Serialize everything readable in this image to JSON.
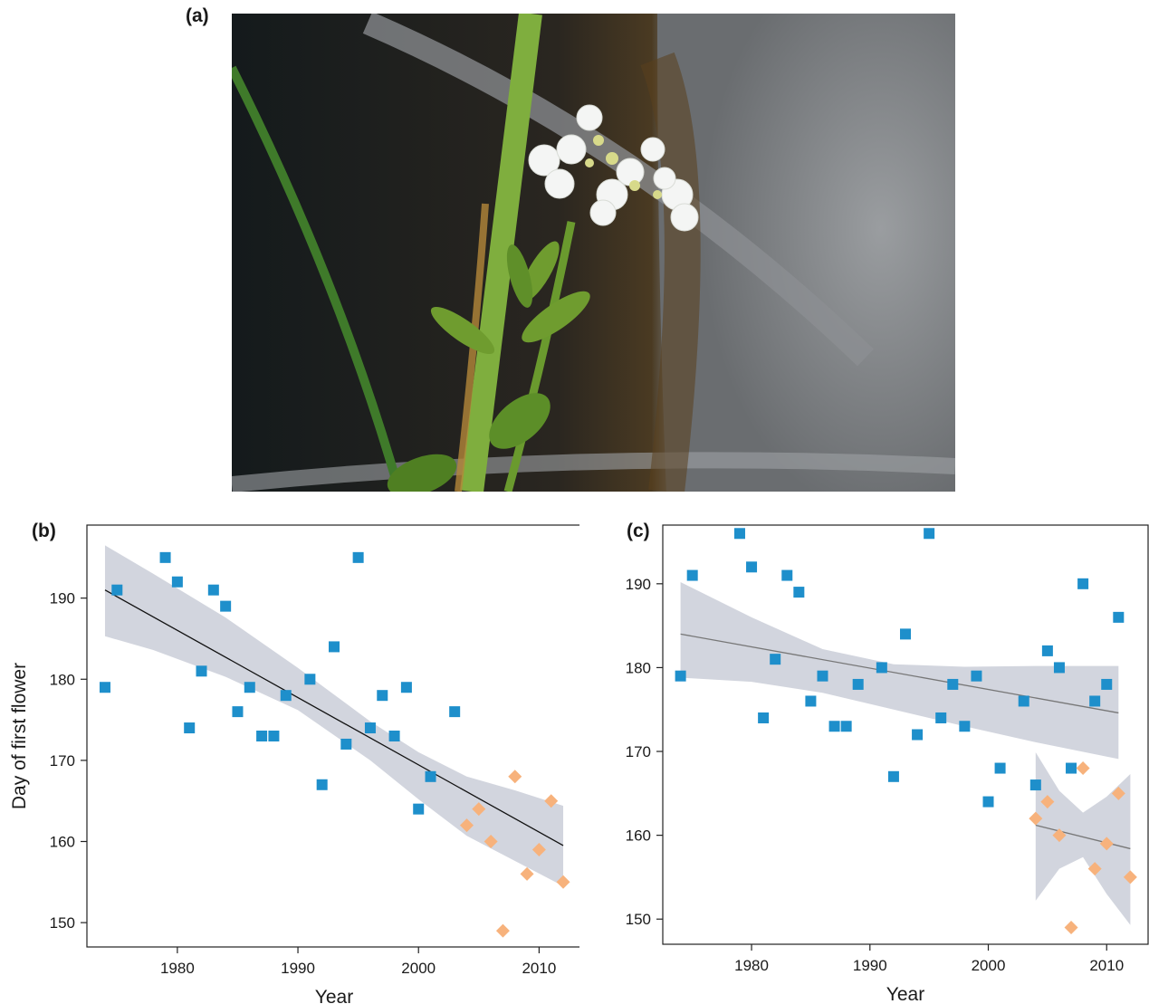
{
  "labels": {
    "a": "(a)",
    "b": "(b)",
    "c": "(c)"
  },
  "photo": {
    "description_icon": "flower-photo"
  },
  "colors": {
    "blue": "#1e8fcb",
    "orange": "#f7b27c",
    "band": "#d2d5de",
    "line_b": "#111111",
    "line_c": "#777777"
  },
  "chart_data": [
    {
      "panel": "(b)",
      "type": "scatter",
      "xlabel": "Year",
      "ylabel": "Day of  first flower",
      "xlim": [
        1972.5,
        2013.5
      ],
      "ylim": [
        147,
        199
      ],
      "xticks": [
        1980,
        1990,
        2000,
        2010
      ],
      "yticks": [
        150,
        160,
        170,
        180,
        190
      ],
      "series": [
        {
          "marker": "square",
          "color": "#1e8fcb",
          "points": [
            [
              1974,
              179
            ],
            [
              1975,
              191
            ],
            [
              1979,
              195
            ],
            [
              1980,
              192
            ],
            [
              1981,
              174
            ],
            [
              1982,
              181
            ],
            [
              1983,
              191
            ],
            [
              1984,
              189
            ],
            [
              1985,
              176
            ],
            [
              1986,
              179
            ],
            [
              1987,
              173
            ],
            [
              1988,
              173
            ],
            [
              1989,
              178
            ],
            [
              1991,
              180
            ],
            [
              1992,
              167
            ],
            [
              1993,
              184
            ],
            [
              1994,
              172
            ],
            [
              1995,
              195
            ],
            [
              1996,
              174
            ],
            [
              1997,
              178
            ],
            [
              1998,
              173
            ],
            [
              1999,
              179
            ],
            [
              2000,
              164
            ],
            [
              2001,
              168
            ],
            [
              2003,
              176
            ]
          ]
        },
        {
          "marker": "diamond",
          "color": "#f7b27c",
          "points": [
            [
              2004,
              162
            ],
            [
              2005,
              164
            ],
            [
              2006,
              160
            ],
            [
              2007,
              149
            ],
            [
              2008,
              168
            ],
            [
              2009,
              156
            ],
            [
              2010,
              159
            ],
            [
              2011,
              165
            ],
            [
              2012,
              155
            ]
          ]
        }
      ],
      "fits": [
        {
          "color": "#111111",
          "line": [
            [
              1974,
              191
            ],
            [
              2012,
              159.5
            ]
          ],
          "band_upper": [
            [
              1974,
              196.5
            ],
            [
              1978,
              193
            ],
            [
              1984,
              187.6
            ],
            [
              1990,
              181.4
            ],
            [
              1996,
              174.8
            ],
            [
              2000,
              171
            ],
            [
              2004,
              168
            ],
            [
              2008,
              166.3
            ],
            [
              2012,
              164.4
            ]
          ],
          "band_lower": [
            [
              1974,
              185.3
            ],
            [
              1978,
              183.6
            ],
            [
              1984,
              180.3
            ],
            [
              1990,
              176.2
            ],
            [
              1996,
              170
            ],
            [
              2000,
              165.2
            ],
            [
              2004,
              160.7
            ],
            [
              2008,
              157.6
            ],
            [
              2012,
              154.5
            ]
          ]
        }
      ]
    },
    {
      "panel": "(c)",
      "type": "scatter",
      "xlabel": "Year",
      "ylabel": "",
      "xlim": [
        1972.5,
        2013.5
      ],
      "ylim": [
        147,
        197
      ],
      "xticks": [
        1980,
        1990,
        2000,
        2010
      ],
      "yticks": [
        150,
        160,
        170,
        180,
        190
      ],
      "series": [
        {
          "marker": "square",
          "color": "#1e8fcb",
          "points": [
            [
              1974,
              179
            ],
            [
              1975,
              191
            ],
            [
              1979,
              196
            ],
            [
              1980,
              192
            ],
            [
              1981,
              174
            ],
            [
              1982,
              181
            ],
            [
              1983,
              191
            ],
            [
              1984,
              189
            ],
            [
              1985,
              176
            ],
            [
              1986,
              179
            ],
            [
              1987,
              173
            ],
            [
              1988,
              173
            ],
            [
              1989,
              178
            ],
            [
              1991,
              180
            ],
            [
              1992,
              167
            ],
            [
              1993,
              184
            ],
            [
              1994,
              172
            ],
            [
              1995,
              196
            ],
            [
              1996,
              174
            ],
            [
              1997,
              178
            ],
            [
              1998,
              173
            ],
            [
              1999,
              179
            ],
            [
              2000,
              164
            ],
            [
              2001,
              168
            ],
            [
              2003,
              176
            ],
            [
              2004,
              166
            ],
            [
              2005,
              182
            ],
            [
              2006,
              180
            ],
            [
              2007,
              168
            ],
            [
              2008,
              190
            ],
            [
              2009,
              176
            ],
            [
              2010,
              178
            ],
            [
              2011,
              186
            ]
          ]
        },
        {
          "marker": "diamond",
          "color": "#f7b27c",
          "points": [
            [
              2004,
              162
            ],
            [
              2005,
              164
            ],
            [
              2006,
              160
            ],
            [
              2007,
              149
            ],
            [
              2008,
              168
            ],
            [
              2009,
              156
            ],
            [
              2010,
              159
            ],
            [
              2011,
              165
            ],
            [
              2012,
              155
            ]
          ]
        }
      ],
      "fits": [
        {
          "color": "#777777",
          "line": [
            [
              1974,
              184
            ],
            [
              2011,
              174.6
            ]
          ],
          "band_upper": [
            [
              1974,
              190.2
            ],
            [
              1980,
              186
            ],
            [
              1986,
              182.2
            ],
            [
              1992,
              180.4
            ],
            [
              1998,
              180.1
            ],
            [
              2004,
              180.2
            ],
            [
              2011,
              180.2
            ]
          ],
          "band_lower": [
            [
              1974,
              178.8
            ],
            [
              1980,
              178.3
            ],
            [
              1986,
              177
            ],
            [
              1992,
              175
            ],
            [
              1998,
              173
            ],
            [
              2004,
              171.1
            ],
            [
              2011,
              169.1
            ]
          ]
        },
        {
          "color": "#777777",
          "line": [
            [
              2004,
              161.2
            ],
            [
              2012,
              158.4
            ]
          ],
          "band_upper": [
            [
              2004,
              169.9
            ],
            [
              2006,
              165.3
            ],
            [
              2008,
              162.7
            ],
            [
              2010,
              164.6
            ],
            [
              2012,
              167.3
            ]
          ],
          "band_lower": [
            [
              2004,
              152.2
            ],
            [
              2006,
              156
            ],
            [
              2008,
              157.4
            ],
            [
              2010,
              153
            ],
            [
              2012,
              149.3
            ]
          ]
        }
      ]
    }
  ]
}
